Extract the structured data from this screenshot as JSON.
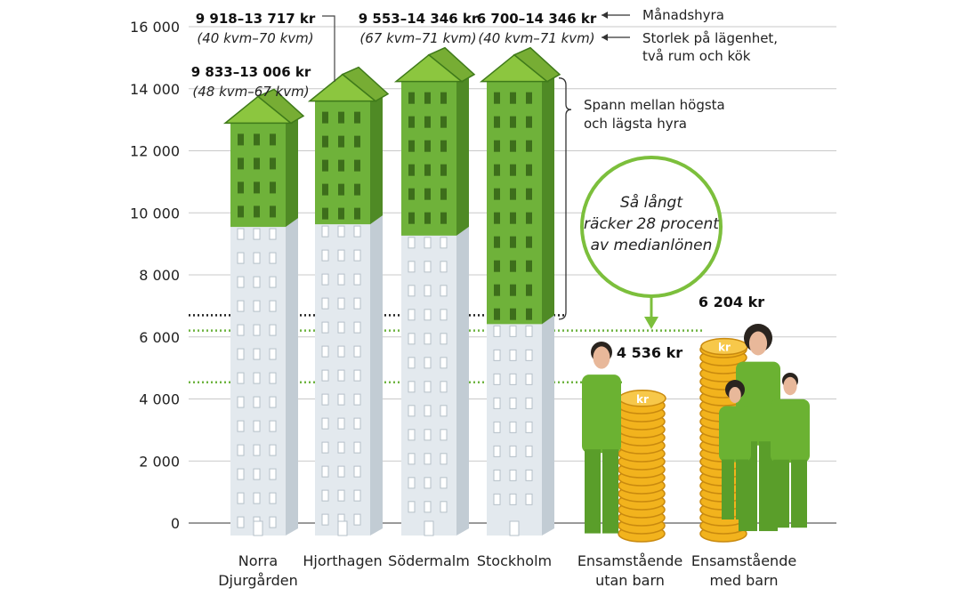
{
  "chart_data": {
    "type": "bar",
    "y_ticks": [
      "0",
      "2 000",
      "4 000",
      "6 000",
      "8 000",
      "10 000",
      "12 000",
      "14 000",
      "16 000"
    ],
    "ylim": [
      0,
      16000
    ],
    "grid": true,
    "districts": [
      {
        "label_lines": [
          "Norra",
          "Djurgården"
        ],
        "min": 9833,
        "max": 13006,
        "rent_text": "9 833–13 006 kr",
        "size_text": "(48 kvm–67 kvm)"
      },
      {
        "label_lines": [
          "Hjorthagen"
        ],
        "min": 9918,
        "max": 13717,
        "rent_text": "9 918–13 717 kr",
        "size_text": "(40 kvm–70 kvm)"
      },
      {
        "label_lines": [
          "Södermalm"
        ],
        "min": 9553,
        "max": 14346,
        "rent_text": "9 553–14 346 kr",
        "size_text": "(67 kvm–71 kvm)"
      },
      {
        "label_lines": [
          "Stockholm"
        ],
        "min": 6700,
        "max": 14346,
        "rent_text": "6 700–14 346 kr",
        "size_text": "(40 kvm–71 kvm)"
      }
    ],
    "affordability": [
      {
        "label_lines": [
          "Ensamstående",
          "utan barn"
        ],
        "value": 4536,
        "amount_text": "4 536 kr"
      },
      {
        "label_lines": [
          "Ensamstående",
          "med barn"
        ],
        "value": 6204,
        "amount_text": "6 204 kr"
      }
    ],
    "reference_lines": [
      {
        "value": 6700,
        "style": "dotted",
        "color": "#222222"
      },
      {
        "value": 6204,
        "style": "dotted",
        "color": "#6db33f"
      },
      {
        "value": 4536,
        "style": "dotted",
        "color": "#6db33f"
      }
    ],
    "legend": {
      "rent": "Månadshyra",
      "size_lines": [
        "Storlek på lägenhet,",
        "två rum och kök"
      ],
      "span_lines": [
        "Spann mellan högsta",
        "och lägsta hyra"
      ]
    },
    "callout_lines": [
      "Så långt",
      "räcker 28 procent",
      "av medianlönen"
    ],
    "coin_symbol": "kr"
  },
  "colors": {
    "green_front": "#6fb23a",
    "green_side": "#4f8a25",
    "green_roof": "#8cc63f",
    "grey_front": "#e3e9ee",
    "grey_side": "#c2ccd4",
    "window_green": "#3d6e1b",
    "window_grey": "#ffffff",
    "coin": "#f2b31d",
    "coin_edge": "#c98a0f",
    "person": "#6bb232",
    "skin": "#e8b89a",
    "hair": "#2a241f"
  }
}
